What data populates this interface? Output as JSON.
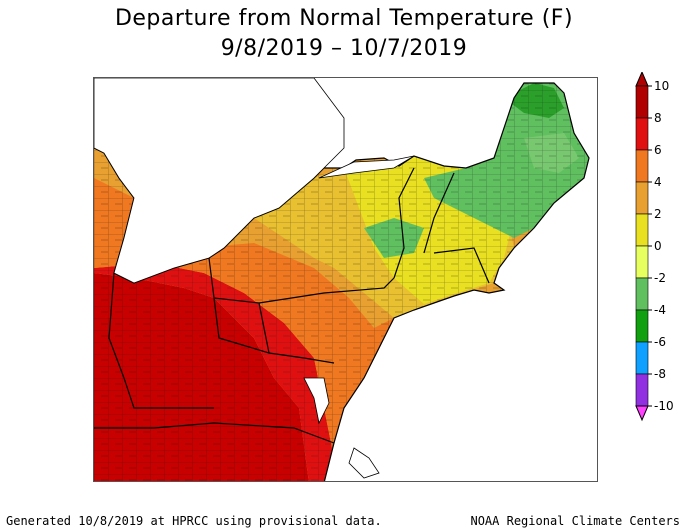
{
  "title": {
    "line1": "Departure from Normal Temperature (F)",
    "line2": "9/8/2019 – 10/7/2019"
  },
  "map": {
    "region": "Northeast United States",
    "source_grid": "county outlines"
  },
  "colorbar": {
    "labels": [
      "10",
      "8",
      "6",
      "4",
      "2",
      "0",
      "-2",
      "-4",
      "-6",
      "-8",
      "-10"
    ],
    "colors": [
      "#b00000",
      "#e01010",
      "#f07820",
      "#e8a030",
      "#e8e020",
      "#e8ff60",
      "#60c060",
      "#10a010",
      "#10a0ff",
      "#9030e0",
      "#ff40ff"
    ]
  },
  "footer": {
    "left": "Generated 10/8/2019 at HPRCC using provisional data.",
    "right": "NOAA Regional Climate Centers"
  }
}
